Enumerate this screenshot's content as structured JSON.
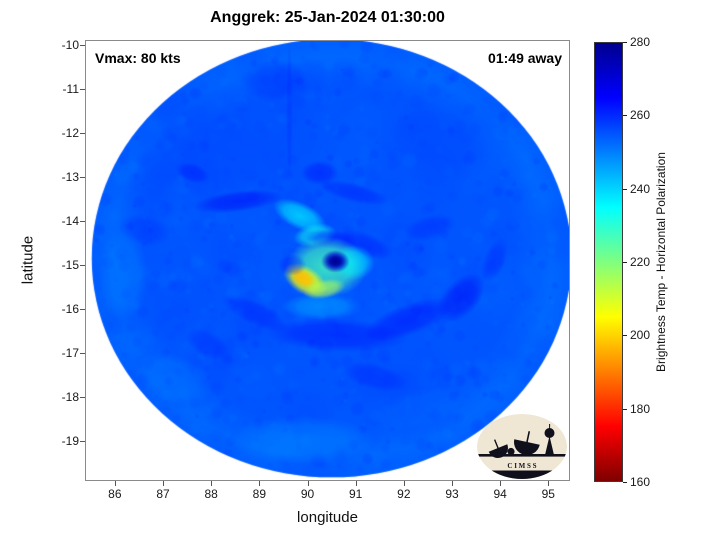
{
  "logo": {
    "text": "C I M S S"
  },
  "chart_data": {
    "type": "heatmap",
    "title": "Anggrek: 25-Jan-2024 01:30:00",
    "xlabel": "longitude",
    "ylabel": "latitude",
    "xlim": [
      85.38,
      95.45
    ],
    "ylim": [
      -19.91,
      -9.89
    ],
    "xticks": [
      86,
      87,
      88,
      89,
      90,
      91,
      92,
      93,
      94,
      95
    ],
    "yticks": [
      -10,
      -11,
      -12,
      -13,
      -14,
      -15,
      -16,
      -17,
      -18,
      -19
    ],
    "annotations": {
      "vmax": "Vmax: 80 kts",
      "eta": "01:49 away"
    },
    "colorbar": {
      "label": "Brightness Temp - Horizontal Polarization",
      "min": 160,
      "max": 280,
      "ticks": [
        160,
        180,
        200,
        220,
        240,
        260,
        280
      ],
      "stops": [
        {
          "t": 0.0,
          "color": "#7f0000"
        },
        {
          "t": 0.125,
          "color": "#ff0000"
        },
        {
          "t": 0.375,
          "color": "#ffff00"
        },
        {
          "t": 0.625,
          "color": "#00ffff"
        },
        {
          "t": 0.875,
          "color": "#0000ff"
        },
        {
          "t": 1.0,
          "color": "#00008f"
        }
      ]
    },
    "storm": {
      "name": "Anggrek",
      "vmax_kts": 80,
      "eye_lon": 90.58,
      "eye_lat": -14.92
    },
    "swath": {
      "center_lon": 90.5,
      "center_lat": -14.85,
      "radius_deg": 5.0,
      "base_temp": 255
    },
    "rim": {
      "temp": 249,
      "alpha": 0.35
    },
    "noise": [
      {
        "seed": 42,
        "count": 150,
        "size": [
          14,
          36
        ],
        "temp_range": [
          251,
          261
        ],
        "alpha_range": [
          0.08,
          0.16
        ]
      },
      {
        "seed": 7,
        "count": 1200,
        "size": [
          2,
          9
        ],
        "temp_range": [
          248,
          264
        ],
        "alpha_range": [
          0.05,
          0.18
        ]
      }
    ],
    "features": [
      {
        "lon": 88.1,
        "lat": -12.0,
        "rx": 2.3,
        "ry": 1.5,
        "rot": 0.0,
        "temp": 258,
        "alpha": 0.3
      },
      {
        "lon": 89.3,
        "lat": -10.8,
        "rx": 0.7,
        "ry": 0.5,
        "rot": 0.0,
        "temp": 261,
        "alpha": 0.35
      },
      {
        "lon": 89.62,
        "lat": -11.5,
        "rx": 0.07,
        "ry": 1.6,
        "rot": 0.0,
        "temp": 261,
        "alpha": 0.3
      },
      {
        "lon": 92.6,
        "lat": -11.9,
        "rx": 2.0,
        "ry": 1.3,
        "rot": 0.0,
        "temp": 257,
        "alpha": 0.22
      },
      {
        "lon": 87.6,
        "lat": -12.9,
        "rx": 0.35,
        "ry": 0.22,
        "rot": 0.3,
        "temp": 264,
        "alpha": 0.4
      },
      {
        "lon": 88.55,
        "lat": -13.55,
        "rx": 0.95,
        "ry": 0.24,
        "rot": -0.12,
        "temp": 266,
        "alpha": 0.5
      },
      {
        "lon": 90.25,
        "lat": -12.9,
        "rx": 0.4,
        "ry": 0.28,
        "rot": 0.0,
        "temp": 265,
        "alpha": 0.42
      },
      {
        "lon": 90.95,
        "lat": -13.35,
        "rx": 0.75,
        "ry": 0.22,
        "rot": 0.25,
        "temp": 264,
        "alpha": 0.38
      },
      {
        "lon": 86.6,
        "lat": -14.2,
        "rx": 0.55,
        "ry": 0.35,
        "rot": 0.2,
        "temp": 262,
        "alpha": 0.3
      },
      {
        "lon": 86.15,
        "lat": -15.2,
        "rx": 0.5,
        "ry": 1.1,
        "rot": 0.0,
        "temp": 249,
        "alpha": 0.4
      },
      {
        "lon": 87.2,
        "lat": -17.6,
        "rx": 0.85,
        "ry": 0.55,
        "rot": 0.4,
        "temp": 250,
        "alpha": 0.38
      },
      {
        "lon": 89.9,
        "lat": -19.0,
        "rx": 1.5,
        "ry": 0.55,
        "rot": 0.0,
        "temp": 248,
        "alpha": 0.45
      },
      {
        "lon": 92.3,
        "lat": -18.3,
        "rx": 1.0,
        "ry": 0.45,
        "rot": -0.3,
        "temp": 252,
        "alpha": 0.35
      },
      {
        "lon": 88.9,
        "lat": -16.1,
        "rx": 0.75,
        "ry": 0.28,
        "rot": 0.45,
        "temp": 263,
        "alpha": 0.4
      },
      {
        "lon": 87.9,
        "lat": -16.8,
        "rx": 0.5,
        "ry": 0.3,
        "rot": 0.5,
        "temp": 262,
        "alpha": 0.33
      },
      {
        "lon": 90.6,
        "lat": -16.6,
        "rx": 1.5,
        "ry": 0.38,
        "rot": 0.05,
        "temp": 264,
        "alpha": 0.45
      },
      {
        "lon": 92.1,
        "lat": -16.25,
        "rx": 1.0,
        "ry": 0.36,
        "rot": -0.35,
        "temp": 265,
        "alpha": 0.45
      },
      {
        "lon": 93.2,
        "lat": -15.75,
        "rx": 0.62,
        "ry": 0.4,
        "rot": -0.8,
        "temp": 266,
        "alpha": 0.5
      },
      {
        "lon": 93.9,
        "lat": -14.9,
        "rx": 0.5,
        "ry": 0.25,
        "rot": -1.2,
        "temp": 263,
        "alpha": 0.35
      },
      {
        "lon": 91.4,
        "lat": -17.55,
        "rx": 0.7,
        "ry": 0.3,
        "rot": 0.25,
        "temp": 263,
        "alpha": 0.35
      },
      {
        "lon": 92.55,
        "lat": -14.15,
        "rx": 0.55,
        "ry": 0.28,
        "rot": -0.25,
        "temp": 263,
        "alpha": 0.32
      },
      {
        "lon": 90.3,
        "lat": -15.95,
        "rx": 0.85,
        "ry": 0.3,
        "rot": 0.0,
        "temp": 242,
        "alpha": 0.45
      },
      {
        "lon": 89.84,
        "lat": -13.88,
        "rx": 0.6,
        "ry": 0.3,
        "rot": 0.45,
        "temp": 236,
        "alpha": 0.7
      },
      {
        "lon": 90.15,
        "lat": -14.32,
        "rx": 0.45,
        "ry": 0.26,
        "rot": -0.2,
        "temp": 233,
        "alpha": 0.65
      },
      {
        "lon": 90.5,
        "lat": -14.42,
        "rx": 0.55,
        "ry": 0.22,
        "rot": 0.1,
        "temp": 263,
        "alpha": 0.5
      },
      {
        "lon": 91.2,
        "lat": -14.55,
        "rx": 0.6,
        "ry": 0.28,
        "rot": 0.35,
        "temp": 263,
        "alpha": 0.45
      },
      {
        "lon": 90.4,
        "lat": -15.05,
        "rx": 0.85,
        "ry": 0.7,
        "rot": 0.0,
        "temp": 227,
        "alpha": 0.8
      },
      {
        "lon": 90.95,
        "lat": -14.95,
        "rx": 0.45,
        "ry": 0.4,
        "rot": 0.0,
        "temp": 236,
        "alpha": 0.6
      },
      {
        "lon": 89.95,
        "lat": -15.35,
        "rx": 0.5,
        "ry": 0.32,
        "rot": 0.55,
        "temp": 205,
        "alpha": 0.85
      },
      {
        "lon": 89.9,
        "lat": -15.3,
        "rx": 0.28,
        "ry": 0.2,
        "rot": 0.5,
        "temp": 197,
        "alpha": 0.9
      },
      {
        "lon": 90.35,
        "lat": -15.55,
        "rx": 0.45,
        "ry": 0.22,
        "rot": -0.2,
        "temp": 214,
        "alpha": 0.7
      },
      {
        "lon": 89.68,
        "lat": -15.0,
        "rx": 0.3,
        "ry": 0.25,
        "rot": 0.0,
        "temp": 263,
        "alpha": 0.4
      },
      {
        "lon": 90.58,
        "lat": -14.92,
        "rx": 0.3,
        "ry": 0.26,
        "rot": 0.0,
        "temp": 272,
        "alpha": 0.95
      },
      {
        "lon": 90.58,
        "lat": -14.92,
        "rx": 0.18,
        "ry": 0.15,
        "rot": 0.0,
        "temp": 279,
        "alpha": 0.92
      }
    ]
  }
}
